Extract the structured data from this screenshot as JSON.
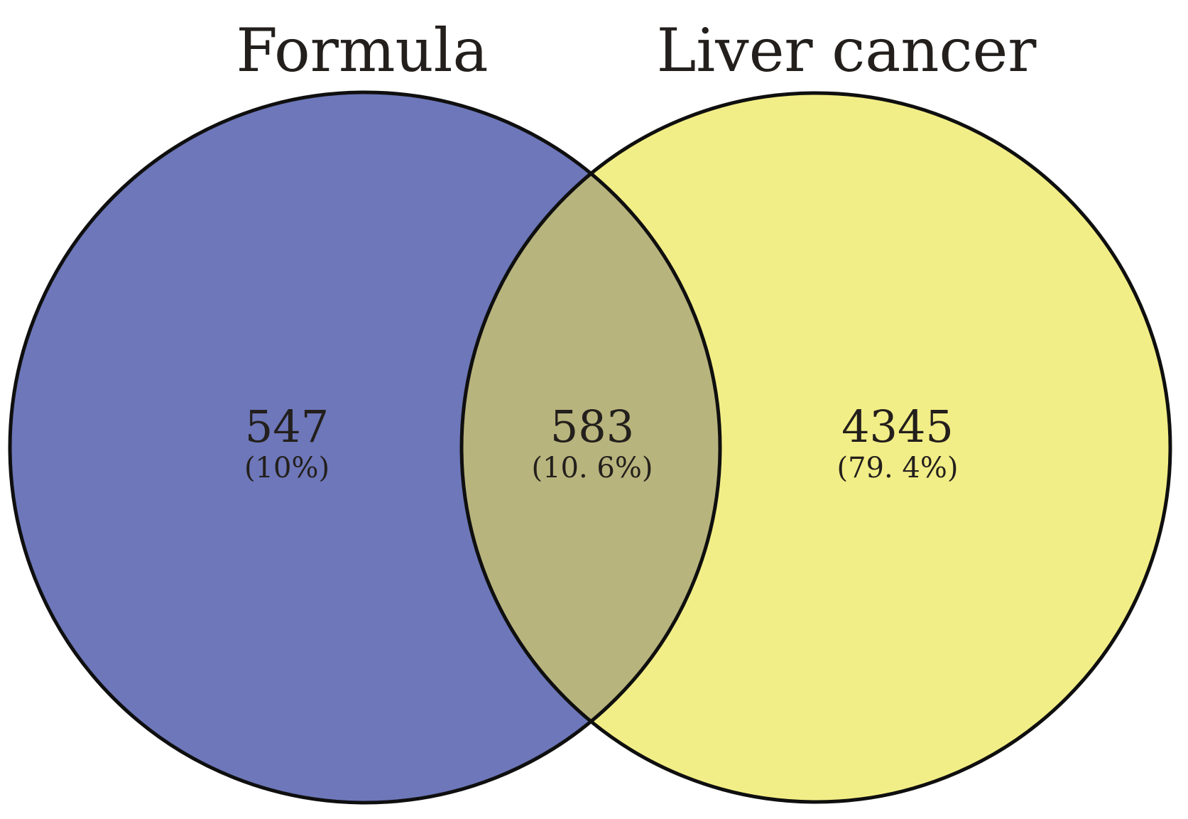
{
  "sets": [
    {
      "name": "Formula",
      "color": "#6d77b9"
    },
    {
      "name": "Liver cancer",
      "color": "#f2ee87"
    }
  ],
  "overlap_color": "#b8b47d",
  "regions": [
    {
      "id": "formula_only",
      "count": "547",
      "percent": "(10%)"
    },
    {
      "id": "intersection",
      "count": "583",
      "percent": "(10. 6%)"
    },
    {
      "id": "liver_only",
      "count": "4345",
      "percent": "(79. 4%)"
    }
  ]
}
